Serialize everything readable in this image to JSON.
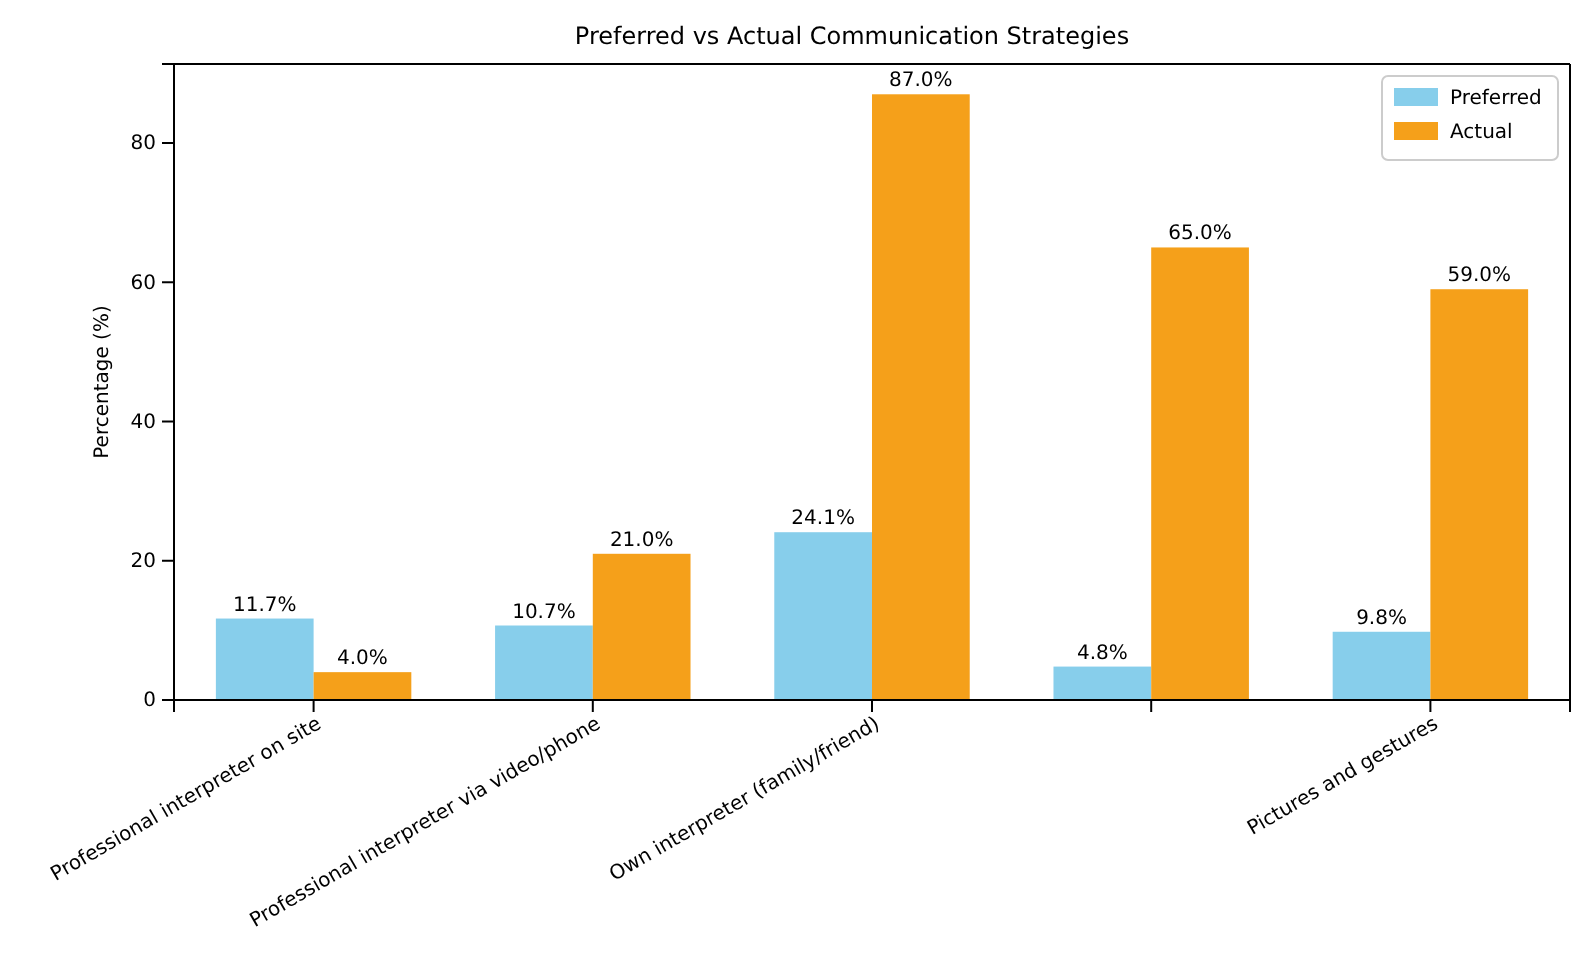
{
  "chart_data": {
    "type": "bar",
    "title": "Preferred vs Actual Communication Strategies",
    "ylabel": "Percentage (%)",
    "categories": [
      "Professional interpreter on site",
      "Professional interpreter via video/phone",
      "Own interpreter (family/friend)",
      null,
      "Pictures and gestures"
    ],
    "series": [
      {
        "name": "Preferred",
        "color": "#87ceeb",
        "values": [
          11.7,
          10.7,
          24.1,
          4.8,
          9.8
        ],
        "value_labels": [
          "11.7%",
          "10.7%",
          "24.1%",
          "4.8%",
          "9.8%"
        ]
      },
      {
        "name": "Actual",
        "color": "#f5a01a",
        "values": [
          4.0,
          21.0,
          87.0,
          65.0,
          59.0
        ],
        "value_labels": [
          "4.0%",
          "21.0%",
          "87.0%",
          "65.0%",
          "59.0%"
        ]
      }
    ],
    "ylim": [
      0,
      91.35
    ],
    "yticks": [
      0,
      20,
      40,
      60,
      80
    ],
    "legend": "top right"
  }
}
